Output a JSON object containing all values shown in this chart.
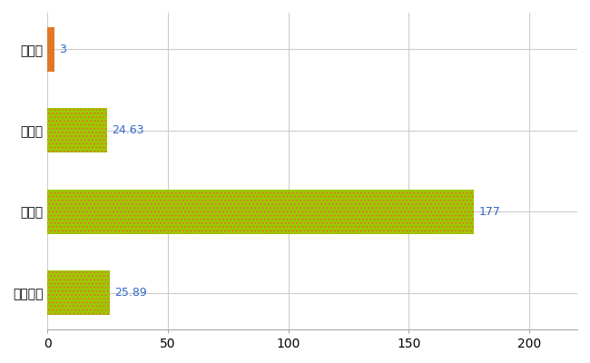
{
  "categories": [
    "芳賀町",
    "県平均",
    "県最大",
    "全国平均"
  ],
  "values": [
    3,
    24.63,
    177,
    25.89
  ],
  "bar_colors": [
    "#e07828",
    "#99cc00",
    "#99cc00",
    "#99cc00"
  ],
  "hatch_colors": [
    null,
    "#e07828",
    "#e07828",
    "#e07828"
  ],
  "value_labels": [
    "3",
    "24.63",
    "177",
    "25.89"
  ],
  "xlim": [
    0,
    220
  ],
  "xticks": [
    0,
    50,
    100,
    150,
    200
  ],
  "background_color": "#ffffff",
  "grid_color": "#cccccc",
  "label_color": "#3366cc",
  "bar_height": 0.55,
  "figsize": [
    6.5,
    4.0
  ],
  "dpi": 100
}
